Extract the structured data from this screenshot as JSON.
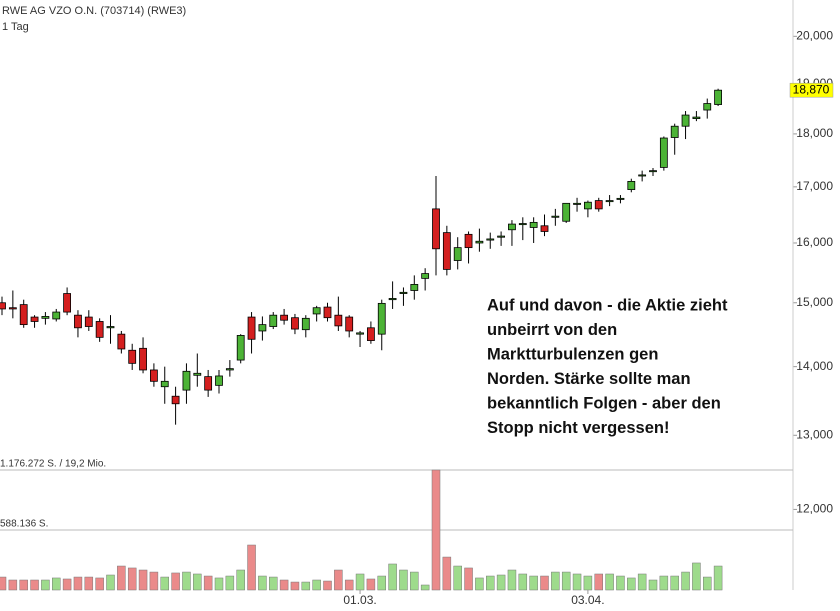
{
  "chart_data": {
    "type": "candlestick",
    "title": "RWE AG VZO O.N. (703714) (RWE3)",
    "subtitle": "1 Tag",
    "annotation": [
      "Auf und davon - die Aktie zieht",
      "unbeirrt von den",
      "Marktturbulenzen gen",
      "Norden. Stärke sollte man",
      "bekanntlich Folgen - aber den",
      "Stopp nicht vergessen!"
    ],
    "categories": [
      null,
      null,
      null,
      null,
      null,
      null,
      null,
      null,
      null,
      null,
      null,
      null,
      null,
      null,
      null,
      null,
      null,
      null,
      null,
      null,
      null,
      null,
      null,
      null,
      null,
      null,
      null,
      null,
      null,
      null,
      null,
      null,
      null,
      "01.03.",
      null,
      null,
      null,
      null,
      null,
      null,
      null,
      null,
      null,
      null,
      null,
      null,
      null,
      null,
      null,
      null,
      null,
      null,
      null,
      null,
      "03.04.",
      null,
      null,
      null,
      null,
      null,
      null,
      null,
      null,
      null,
      null,
      null,
      null
    ],
    "open": [
      15000,
      14920,
      14970,
      14770,
      14750,
      14740,
      15150,
      14800,
      14770,
      14700,
      14600,
      14500,
      14250,
      14280,
      13950,
      13700,
      13560,
      13650,
      13870,
      13850,
      13720,
      13950,
      14100,
      14770,
      14550,
      14620,
      14800,
      14760,
      14570,
      14820,
      14930,
      14800,
      14770,
      14500,
      14600,
      14500,
      15050,
      15150,
      15200,
      15400,
      16600,
      16180,
      15700,
      16150,
      16000,
      16050,
      16100,
      16230,
      16320,
      16270,
      16300,
      16450,
      16380,
      16680,
      16600,
      16750,
      16730,
      16770,
      16950,
      17200,
      17280,
      17360,
      17930,
      18150,
      18300,
      18470,
      18580
    ],
    "high": [
      15100,
      15200,
      15050,
      14800,
      14850,
      14900,
      15250,
      14880,
      14880,
      14750,
      14800,
      14550,
      14350,
      14450,
      14050,
      14000,
      13700,
      14050,
      14200,
      13950,
      13950,
      14100,
      14500,
      14850,
      14780,
      14850,
      14900,
      14820,
      14800,
      14950,
      15000,
      15100,
      14800,
      14550,
      14700,
      15050,
      15350,
      15250,
      15450,
      15570,
      17200,
      16300,
      16100,
      16200,
      16250,
      16180,
      16200,
      16400,
      16450,
      16450,
      16500,
      16600,
      16700,
      16800,
      16750,
      16800,
      16850,
      16850,
      17150,
      17300,
      17350,
      17950,
      18200,
      18450,
      18450,
      18700,
      18900
    ],
    "low": [
      14800,
      14750,
      14600,
      14600,
      14650,
      14700,
      14800,
      14450,
      14550,
      14380,
      14350,
      14200,
      13950,
      13900,
      13700,
      13450,
      13150,
      13450,
      13700,
      13550,
      13600,
      13850,
      14050,
      14200,
      14400,
      14580,
      14650,
      14500,
      14450,
      14700,
      14700,
      14550,
      14450,
      14300,
      14350,
      14250,
      14900,
      14950,
      15050,
      15200,
      15450,
      15450,
      15550,
      15650,
      15850,
      15900,
      15950,
      15950,
      16050,
      16000,
      16120,
      16300,
      16350,
      16550,
      16450,
      16550,
      16650,
      16700,
      16900,
      17100,
      17200,
      17300,
      17600,
      17900,
      18250,
      18300,
      18550
    ],
    "close": [
      14900,
      14900,
      14650,
      14700,
      14780,
      14850,
      14850,
      14600,
      14620,
      14450,
      14620,
      14270,
      14050,
      13950,
      13780,
      13780,
      13450,
      13930,
      13900,
      13650,
      13860,
      13970,
      14480,
      14420,
      14650,
      14800,
      14720,
      14580,
      14750,
      14920,
      14760,
      14630,
      14550,
      14520,
      14400,
      14990,
      15070,
      15170,
      15300,
      15480,
      15900,
      15550,
      15920,
      15920,
      16030,
      16070,
      16120,
      16330,
      16340,
      16360,
      16200,
      16470,
      16700,
      16700,
      16720,
      16600,
      16750,
      16790,
      17100,
      17220,
      17300,
      17920,
      18150,
      18370,
      18330,
      18600,
      18870
    ],
    "close_label": "18,870",
    "volume": [
      127000,
      98000,
      98000,
      98000,
      98000,
      118000,
      108000,
      127000,
      127000,
      118000,
      147000,
      235000,
      216000,
      196000,
      176000,
      127000,
      167000,
      176000,
      157000,
      137000,
      118000,
      137000,
      196000,
      441000,
      137000,
      127000,
      98000,
      78000,
      78000,
      98000,
      88000,
      196000,
      98000,
      157000,
      108000,
      137000,
      255000,
      196000,
      176000,
      49000,
      1176272,
      323000,
      235000,
      216000,
      118000,
      137000,
      147000,
      196000,
      157000,
      137000,
      137000,
      176000,
      176000,
      157000,
      137000,
      157000,
      157000,
      137000,
      118000,
      157000,
      98000,
      137000,
      137000,
      176000,
      265000,
      127000,
      235000
    ],
    "log_scale": true,
    "ylim": [
      11000,
      20800
    ],
    "yticks": [
      {
        "value": 12000,
        "label": "12,000"
      },
      {
        "value": 13000,
        "label": "13,000"
      },
      {
        "value": 14000,
        "label": "14,000"
      },
      {
        "value": 15000,
        "label": "15,000"
      },
      {
        "value": 16000,
        "label": "16,000"
      },
      {
        "value": 17000,
        "label": "17,000"
      },
      {
        "value": 18000,
        "label": "18,000"
      },
      {
        "value": 19000,
        "label": "19,000"
      },
      {
        "value": 20000,
        "label": "20,000"
      }
    ],
    "volume_lim": [
      0,
      1176272
    ],
    "volume_ticks": [
      {
        "value": 1176272,
        "label": "1.176.272 S. / 19,2 Mio."
      },
      {
        "value": 588136,
        "label": "588.136 S."
      }
    ],
    "up_color": "#4cb336",
    "down_color": "#d41f1f",
    "volume_up_color": "#9edb8c",
    "volume_down_color": "#ea8a8a"
  }
}
